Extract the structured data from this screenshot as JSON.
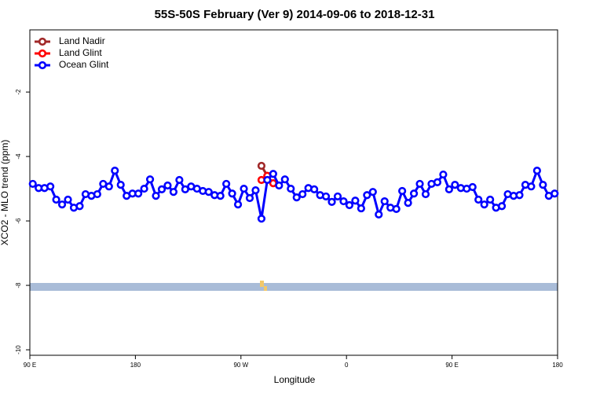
{
  "chart_data": {
    "type": "line",
    "title": "55S-50S February (Ver 9)   2014-09-06 to 2018-12-31",
    "xlabel": "Longitude",
    "ylabel": "XCO2 - MLO trend (ppm)",
    "xlim": [
      90,
      540
    ],
    "ylim": [
      -10.17,
      -0.07
    ],
    "xticks": [
      {
        "value": 90,
        "label": "90 E"
      },
      180,
      {
        "value": 270,
        "label": "90 W"
      },
      {
        "value": 360,
        "label": "0"
      },
      {
        "value": 450,
        "label": "90 E"
      },
      {
        "value": 540,
        "label": "180"
      }
    ],
    "yticks": [
      -10,
      -8,
      -6,
      -4,
      -2
    ],
    "legend": "top-left",
    "series": [
      {
        "name": "Land Nadir",
        "color": "#a02828",
        "x": [
          287.5,
          292.5
        ],
        "values": [
          -4.29,
          -4.6
        ]
      },
      {
        "name": "Land Glint",
        "color": "#ff0000",
        "x": [
          287.5,
          292.5,
          297.5
        ],
        "values": [
          -4.73,
          -4.6,
          -4.83
        ]
      },
      {
        "name": "Ocean Glint",
        "color": "#0000ff",
        "x": [
          92.5,
          97.5,
          102.5,
          107.5,
          112.5,
          117.5,
          122.5,
          127.5,
          132.5,
          137.5,
          142.5,
          147.5,
          152.5,
          157.5,
          162.5,
          167.5,
          172.5,
          177.5,
          182.5,
          187.5,
          192.5,
          197.5,
          202.5,
          207.5,
          212.5,
          217.5,
          222.5,
          227.5,
          232.5,
          237.5,
          242.5,
          247.5,
          252.5,
          257.5,
          262.5,
          267.5,
          272.5,
          277.5,
          282.5,
          287.5,
          292.5,
          297.5,
          302.5,
          307.5,
          312.5,
          317.5,
          322.5,
          327.5,
          332.5,
          337.5,
          342.5,
          347.5,
          352.5,
          357.5,
          362.5,
          367.5,
          372.5,
          377.5,
          382.5,
          387.5,
          392.5,
          397.5,
          402.5,
          407.5,
          412.5,
          417.5,
          422.5,
          427.5,
          432.5,
          437.5,
          442.5,
          447.5,
          452.5,
          457.5,
          462.5,
          467.5,
          472.5,
          477.5,
          482.5,
          487.5,
          492.5,
          497.5,
          502.5,
          507.5,
          512.5,
          517.5,
          522.5,
          527.5,
          532.5,
          537.5
        ],
        "values": [
          -4.85,
          -4.98,
          -4.98,
          -4.93,
          -5.34,
          -5.49,
          -5.34,
          -5.59,
          -5.54,
          -5.17,
          -5.22,
          -5.17,
          -4.85,
          -4.93,
          -4.44,
          -4.88,
          -5.22,
          -5.15,
          -5.15,
          -5.0,
          -4.71,
          -5.22,
          -5.02,
          -4.9,
          -5.1,
          -4.73,
          -5.02,
          -4.93,
          -5.0,
          -5.07,
          -5.1,
          -5.2,
          -5.22,
          -4.85,
          -5.15,
          -5.49,
          -5.0,
          -5.29,
          -5.05,
          -5.93,
          -4.73,
          -4.54,
          -4.9,
          -4.71,
          -5.0,
          -5.27,
          -5.17,
          -4.98,
          -5.02,
          -5.2,
          -5.24,
          -5.41,
          -5.24,
          -5.39,
          -5.51,
          -5.37,
          -5.61,
          -5.2,
          -5.1,
          -5.8,
          -5.39,
          -5.59,
          -5.63,
          -5.07,
          -5.44,
          -5.15,
          -4.85,
          -5.17,
          -4.85,
          -4.8,
          -4.56,
          -5.02,
          -4.88,
          -4.98,
          -5.0,
          -4.95,
          -5.34,
          -5.49,
          -5.34,
          -5.59,
          -5.54,
          -5.17,
          -5.22,
          -5.2,
          -4.88,
          -4.93,
          -4.44,
          -4.88,
          -5.22,
          -5.15
        ]
      }
    ]
  }
}
